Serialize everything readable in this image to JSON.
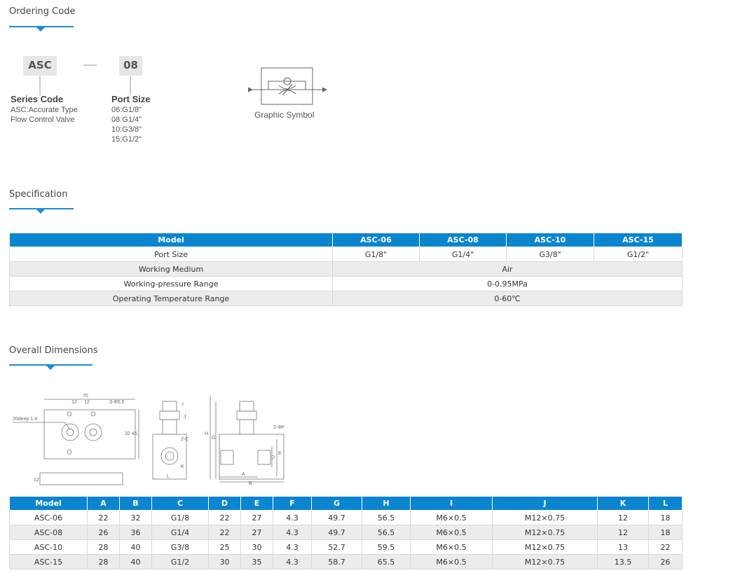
{
  "ordering": {
    "title": "Ordering Code",
    "code_parts": [
      "ASC",
      "08"
    ],
    "series": {
      "label": "Series Code",
      "lines": [
        "ASC:Accurate Type",
        "Flow Control Valve"
      ]
    },
    "port": {
      "label": "Port Size",
      "lines": [
        "06:G1/8\"",
        "08:G1/4\"",
        "10:G3/8\"",
        "15:G1/2\""
      ]
    },
    "symbol_caption": "Graphic Symbol"
  },
  "specification": {
    "title": "Specification",
    "table": {
      "header": [
        "Model",
        "ASC-06",
        "ASC-08",
        "ASC-10",
        "ASC-15"
      ],
      "rows": [
        [
          "Port Size",
          "G1/8\"",
          "G1/4\"",
          "G3/8\"",
          "G1/2\""
        ],
        [
          "Working Medium",
          "Air"
        ],
        [
          "Working-pressure Range",
          "0-0.95MPa"
        ],
        [
          "Operating Temperature Range",
          "0-60℃"
        ]
      ]
    }
  },
  "dimensions": {
    "title": "Overall Dimensions",
    "drawing_labels": [
      "70",
      "12",
      "12",
      "3-Φ5.5",
      "20deep 1.4",
      "32",
      "45",
      "12",
      "I",
      "J",
      "2-C",
      "K",
      "L",
      "H",
      "G",
      "2-ΦF",
      "E",
      "D",
      "A",
      "B"
    ],
    "table": {
      "header": [
        "Model",
        "A",
        "B",
        "C",
        "D",
        "E",
        "F",
        "G",
        "H",
        "I",
        "J",
        "K",
        "L"
      ],
      "rows": [
        [
          "ASC-06",
          22,
          32,
          "G1/8",
          22,
          27,
          4.3,
          49.7,
          56.5,
          "M6×0.5",
          "M12×0.75",
          12,
          18
        ],
        [
          "ASC-08",
          26,
          36,
          "G1/4",
          22,
          27,
          4.3,
          49.7,
          56.5,
          "M6×0.5",
          "M12×0.75",
          12,
          18
        ],
        [
          "ASC-10",
          28,
          40,
          "G3/8",
          25,
          30,
          4.3,
          52.7,
          59.5,
          "M6×0.5",
          "M12×0.75",
          13,
          22
        ],
        [
          "ASC-15",
          28,
          40,
          "G1/2",
          30,
          35,
          4.3,
          58.7,
          65.5,
          "M6×0.5",
          "M12×0.75",
          13.5,
          26
        ]
      ]
    }
  }
}
